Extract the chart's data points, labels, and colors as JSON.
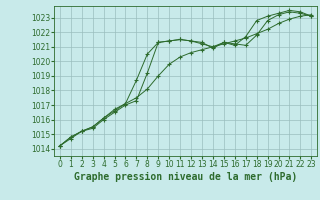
{
  "title": "Graphe pression niveau de la mer (hPa)",
  "bg_color": "#c8eaea",
  "grid_color": "#9bbebe",
  "line_color": "#2d6b2d",
  "x_ticks": [
    0,
    1,
    2,
    3,
    4,
    5,
    6,
    7,
    8,
    9,
    10,
    11,
    12,
    13,
    14,
    15,
    16,
    17,
    18,
    19,
    20,
    21,
    22,
    23
  ],
  "ylim_min": 1013.5,
  "ylim_max": 1023.8,
  "xlim_min": -0.5,
  "xlim_max": 23.5,
  "y_ticks": [
    1014,
    1015,
    1016,
    1017,
    1018,
    1019,
    1020,
    1021,
    1022,
    1023
  ],
  "series1": [
    1014.2,
    1014.8,
    1015.2,
    1015.4,
    1016.0,
    1016.5,
    1017.0,
    1017.3,
    1019.2,
    1021.3,
    1021.4,
    1021.5,
    1021.4,
    1021.3,
    1020.9,
    1021.3,
    1021.2,
    1021.1,
    1021.8,
    1022.8,
    1023.2,
    1023.4,
    1023.3,
    1023.1
  ],
  "series2": [
    1014.2,
    1014.7,
    1015.2,
    1015.5,
    1016.1,
    1016.6,
    1017.1,
    1017.5,
    1018.1,
    1019.0,
    1019.8,
    1020.3,
    1020.6,
    1020.8,
    1021.0,
    1021.2,
    1021.4,
    1021.6,
    1021.9,
    1022.2,
    1022.6,
    1022.9,
    1023.1,
    1023.2
  ],
  "series3": [
    1014.2,
    1014.8,
    1015.2,
    1015.5,
    1016.1,
    1016.7,
    1017.1,
    1018.7,
    1020.5,
    1021.3,
    1021.4,
    1021.5,
    1021.4,
    1021.2,
    1021.0,
    1021.3,
    1021.1,
    1021.7,
    1022.8,
    1023.1,
    1023.3,
    1023.5,
    1023.4,
    1023.1
  ],
  "tick_fontsize": 5.5,
  "xlabel_fontsize": 7.0,
  "marker_size": 3.0,
  "line_width": 0.7
}
